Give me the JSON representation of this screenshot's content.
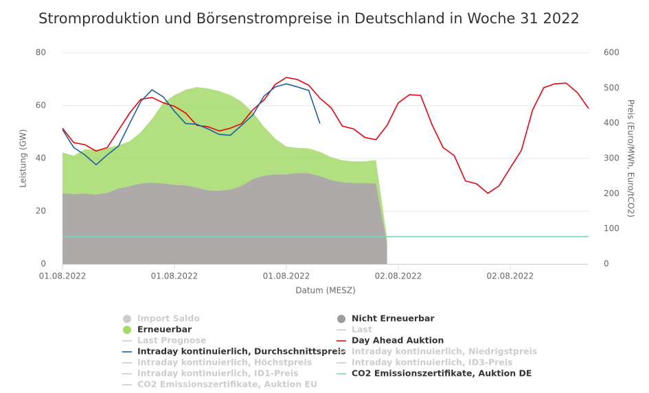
{
  "chart_data": {
    "type": "area-line",
    "title": "Stromproduktion und Börsenstrompreise in Deutschland in Woche 31 2022",
    "x_label": "Datum (MESZ)",
    "y_label": "Leistung (GW)",
    "y2_label": "Preis (Euro/MWh, Euro/tCO2)",
    "x": [
      0,
      1,
      2,
      3,
      4,
      5,
      6,
      7,
      8,
      9,
      10,
      11,
      12,
      13,
      14,
      15,
      16,
      17,
      18,
      19,
      20,
      21,
      22,
      23,
      24,
      25,
      26,
      27,
      28,
      29,
      30,
      31,
      32,
      33,
      34,
      35,
      36,
      37,
      38,
      39,
      40,
      41,
      42,
      43,
      44,
      45,
      46,
      47
    ],
    "xlim": [
      0,
      47
    ],
    "xticks": [
      {
        "value": 0,
        "label": "01.08.2022"
      },
      {
        "value": 10,
        "label": "01.08.2022"
      },
      {
        "value": 20,
        "label": "01.08.2022"
      },
      {
        "value": 30,
        "label": "02.08.2022"
      },
      {
        "value": 40,
        "label": "02.08.2022"
      }
    ],
    "ylim": [
      0,
      80
    ],
    "yticks": [
      0,
      20,
      40,
      60,
      80
    ],
    "y2lim": [
      0,
      600
    ],
    "y2ticks": [
      0,
      100,
      200,
      300,
      400,
      500,
      600
    ],
    "grid": true,
    "series": [
      {
        "name": "Import Saldo",
        "kind": "area",
        "visible": false,
        "color": "#cccccc"
      },
      {
        "name": "Nicht Erneuerbar",
        "kind": "area",
        "visible": true,
        "color": "#a09b9b",
        "values": [
          26.8,
          26.5,
          26.7,
          26.4,
          27.0,
          28.6,
          29.5,
          30.6,
          30.8,
          30.6,
          30.0,
          29.8,
          29.0,
          27.9,
          27.8,
          28.2,
          29.6,
          32.2,
          33.5,
          34.0,
          34.0,
          34.5,
          34.4,
          33.3,
          31.8,
          31.0,
          30.7,
          30.7,
          30.6,
          7.7,
          null,
          null,
          null,
          null,
          null,
          null,
          null,
          null,
          null,
          null,
          null,
          null,
          null,
          null,
          null,
          null,
          null,
          null
        ]
      },
      {
        "name": "Erneuerbar",
        "kind": "area",
        "visible": true,
        "color": "#a5d96a",
        "values": [
          15.5,
          14.5,
          16.8,
          16.8,
          17.0,
          16.4,
          17.0,
          19.4,
          24.2,
          30.4,
          34.0,
          36.2,
          38.0,
          38.6,
          37.7,
          35.8,
          31.9,
          25.3,
          18.5,
          13.5,
          10.5,
          9.5,
          9.4,
          9.2,
          8.7,
          8.3,
          8.2,
          8.2,
          8.8,
          1.8,
          null,
          null,
          null,
          null,
          null,
          null,
          null,
          null,
          null,
          null,
          null,
          null,
          null,
          null,
          null,
          null,
          null,
          null
        ]
      },
      {
        "name": "Last",
        "kind": "line",
        "visible": false,
        "color": "#cccccc"
      },
      {
        "name": "Last Prognose",
        "kind": "line",
        "visible": false,
        "color": "#cccccc"
      },
      {
        "name": "Day Ahead Auktion",
        "kind": "line",
        "visible": true,
        "axis": "y2",
        "color": "#e8000b",
        "values": [
          386,
          345,
          339,
          321,
          331,
          380,
          429,
          468,
          473,
          458,
          448,
          429,
          394,
          390,
          378,
          386,
          399,
          438,
          466,
          510,
          530,
          524,
          508,
          471,
          444,
          392,
          384,
          360,
          353,
          394,
          458,
          481,
          479,
          397,
          331,
          308,
          236,
          228,
          201,
          222,
          273,
          323,
          438,
          501,
          512,
          514,
          487,
          442
        ]
      },
      {
        "name": "Intraday kontinuierlich, Durchschnittspreis",
        "kind": "line",
        "visible": true,
        "axis": "y2",
        "color": "#1c5ea0",
        "values": [
          382,
          331,
          310,
          282,
          310,
          335,
          399,
          462,
          495,
          475,
          434,
          399,
          397,
          384,
          368,
          366,
          394,
          423,
          477,
          503,
          512,
          503,
          493,
          399,
          null,
          null,
          null,
          null,
          null,
          null,
          null,
          null,
          null,
          null,
          null,
          null,
          null,
          null,
          null,
          null,
          null,
          null,
          null,
          null,
          null,
          null,
          null,
          null
        ]
      },
      {
        "name": "Intraday kontinuierlich, Niedrigstpreis",
        "kind": "line",
        "visible": false,
        "color": "#cccccc"
      },
      {
        "name": "Intraday kontinuierlich, Höchstpreis",
        "kind": "line",
        "visible": false,
        "color": "#cccccc"
      },
      {
        "name": "Intraday kontinuierlich, ID3-Preis",
        "kind": "line",
        "visible": false,
        "color": "#cccccc"
      },
      {
        "name": "Intraday kontinuierlich, ID1-Preis",
        "kind": "line",
        "visible": false,
        "color": "#cccccc"
      },
      {
        "name": "CO2 Emissionszertifikate, Auktion DE",
        "kind": "line",
        "visible": true,
        "axis": "y2",
        "color": "#7fd3c4",
        "values": [
          78,
          78,
          78,
          78,
          78,
          78,
          78,
          78,
          78,
          78,
          78,
          78,
          78,
          78,
          78,
          78,
          78,
          78,
          78,
          78,
          78,
          78,
          78,
          78,
          78,
          78,
          78,
          78,
          78,
          78,
          78,
          78,
          78,
          78,
          78,
          78,
          78,
          78,
          78,
          78,
          78,
          78,
          78,
          78,
          78,
          78,
          78,
          78
        ]
      },
      {
        "name": "CO2 Emissionszertifikate, Auktion EU",
        "kind": "line",
        "visible": false,
        "color": "#cccccc"
      }
    ]
  }
}
